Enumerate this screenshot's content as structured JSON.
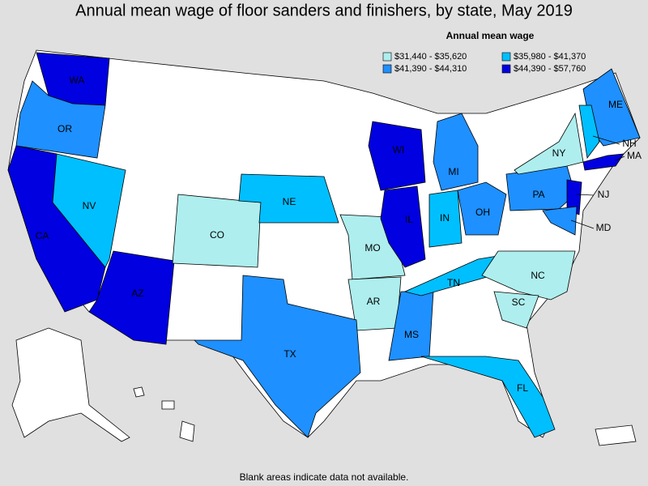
{
  "title": "Annual mean wage of floor sanders and finishers, by state, May 2019",
  "legend": {
    "title": "Annual mean wage",
    "items": [
      {
        "name": "$31,440 - $35,620",
        "color": "#aeeeee"
      },
      {
        "name": "$35,980 - $41,370",
        "color": "#00bfff"
      },
      {
        "name": "$41,390 - $44,310",
        "color": "#1e90ff"
      },
      {
        "name": "$44,390 - $57,760",
        "color": "#0000e0"
      }
    ]
  },
  "states": [
    {
      "label": "WA",
      "color": "#0000e0"
    },
    {
      "label": "OR",
      "color": "#1e90ff"
    },
    {
      "label": "CA",
      "color": "#0000e0"
    },
    {
      "label": "NV",
      "color": "#00bfff"
    },
    {
      "label": "AZ",
      "color": "#0000e0"
    },
    {
      "label": "CO",
      "color": "#aeeeee"
    },
    {
      "label": "NE",
      "color": "#00bfff"
    },
    {
      "label": "MO",
      "color": "#aeeeee"
    },
    {
      "label": "AR",
      "color": "#aeeeee"
    },
    {
      "label": "TX",
      "color": "#1e90ff"
    },
    {
      "label": "MS",
      "color": "#1e90ff"
    },
    {
      "label": "WI",
      "color": "#0000e0"
    },
    {
      "label": "IL",
      "color": "#0000e0"
    },
    {
      "label": "IN",
      "color": "#00bfff"
    },
    {
      "label": "MI",
      "color": "#1e90ff"
    },
    {
      "label": "OH",
      "color": "#1e90ff"
    },
    {
      "label": "TN",
      "color": "#00bfff"
    },
    {
      "label": "NC",
      "color": "#aeeeee"
    },
    {
      "label": "SC",
      "color": "#aeeeee"
    },
    {
      "label": "FL",
      "color": "#00bfff"
    },
    {
      "label": "PA",
      "color": "#1e90ff"
    },
    {
      "label": "NJ",
      "color": "#0000e0"
    },
    {
      "label": "MD",
      "color": "#1e90ff"
    },
    {
      "label": "NY",
      "color": "#aeeeee"
    },
    {
      "label": "ME",
      "color": "#1e90ff"
    },
    {
      "label": "NH",
      "color": "#00bfff"
    },
    {
      "label": "MA",
      "color": "#0000e0"
    }
  ],
  "footnote": "Blank areas indicate data not available."
}
